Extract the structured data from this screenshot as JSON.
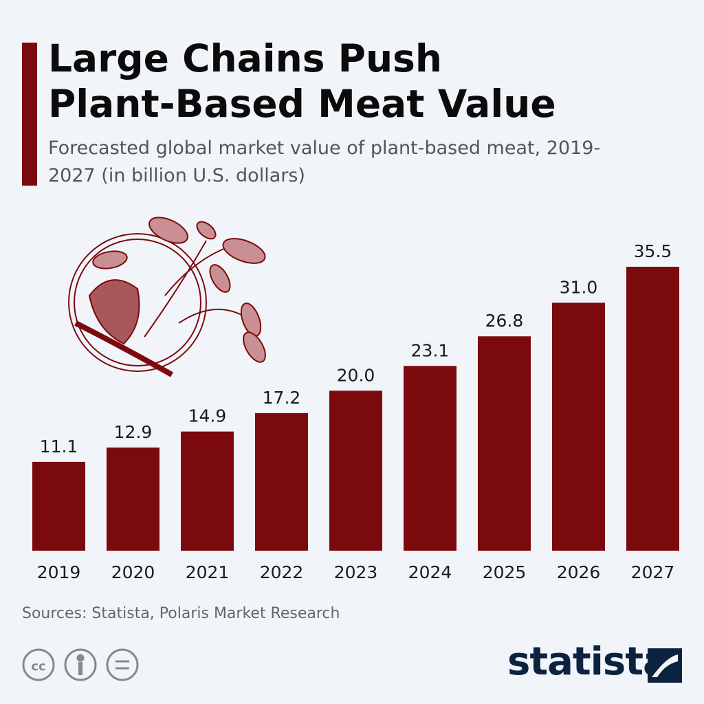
{
  "chart_data": {
    "type": "bar",
    "title": "Large Chains Push Plant-Based Meat Value",
    "subtitle": "Forecasted global market value of plant-based meat, 2019-2027 (in billion U.S. dollars)",
    "categories": [
      "2019",
      "2020",
      "2021",
      "2022",
      "2023",
      "2024",
      "2025",
      "2026",
      "2027"
    ],
    "values": [
      11.1,
      12.9,
      14.9,
      17.2,
      20.0,
      23.1,
      26.8,
      31.0,
      35.5
    ],
    "value_labels": [
      "11.1",
      "12.9",
      "14.9",
      "17.2",
      "20.0",
      "23.1",
      "26.8",
      "31.0",
      "35.5"
    ],
    "color": "#7b0a0d",
    "source": "Sources: Statista, Polaris Market Research",
    "logo": "statista"
  }
}
